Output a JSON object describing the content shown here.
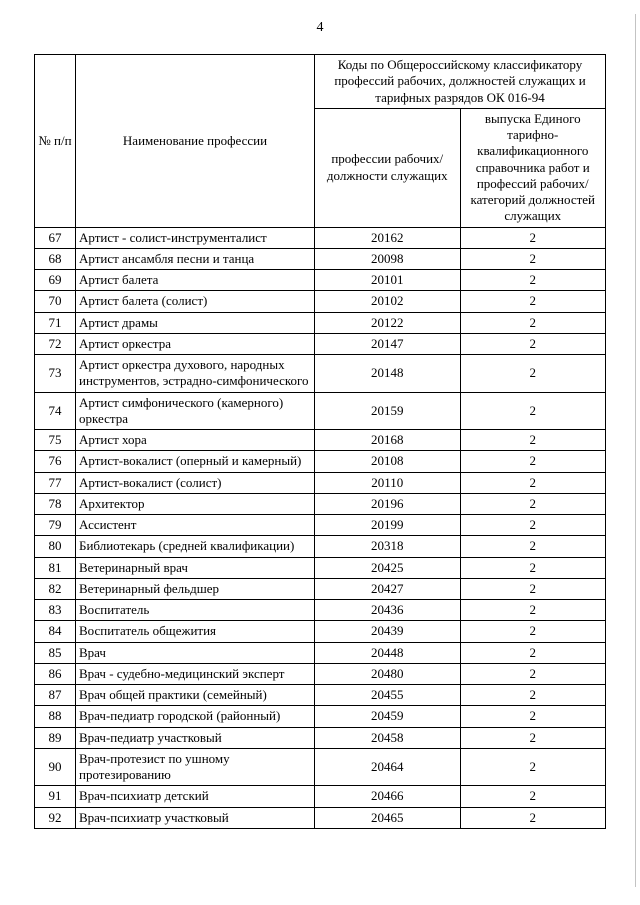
{
  "pageNumber": "4",
  "header": {
    "numLabel": "№ п/п",
    "nameLabel": "Наименование профессии",
    "codesGroup": "Коды по Общероссийскому классификатору профессий рабочих, должностей служащих и тарифных разрядов ОК 016-94",
    "codeCol": "профессии рабочих/ должности служащих",
    "catCol": "выпуска Единого тарифно-квалификационного справочника работ и профессий рабочих/категорий должностей служащих"
  },
  "rows": [
    {
      "n": "67",
      "name": "Артист - солист-инструменталист",
      "code": "20162",
      "cat": "2"
    },
    {
      "n": "68",
      "name": "Артист ансамбля песни и танца",
      "code": "20098",
      "cat": "2"
    },
    {
      "n": "69",
      "name": "Артист балета",
      "code": "20101",
      "cat": "2"
    },
    {
      "n": "70",
      "name": "Артист балета (солист)",
      "code": "20102",
      "cat": "2"
    },
    {
      "n": "71",
      "name": "Артист драмы",
      "code": "20122",
      "cat": "2"
    },
    {
      "n": "72",
      "name": "Артист оркестра",
      "code": "20147",
      "cat": "2"
    },
    {
      "n": "73",
      "name": "Артист оркестра духового, народных инструментов, эстрадно-симфонического",
      "code": "20148",
      "cat": "2"
    },
    {
      "n": "74",
      "name": "Артист симфонического (камерного) оркестра",
      "code": "20159",
      "cat": "2"
    },
    {
      "n": "75",
      "name": "Артист хора",
      "code": "20168",
      "cat": "2"
    },
    {
      "n": "76",
      "name": "Артист-вокалист (оперный и камерный)",
      "code": "20108",
      "cat": "2"
    },
    {
      "n": "77",
      "name": "Артист-вокалист (солист)",
      "code": "20110",
      "cat": "2"
    },
    {
      "n": "78",
      "name": "Архитектор",
      "code": "20196",
      "cat": "2"
    },
    {
      "n": "79",
      "name": "Ассистент",
      "code": "20199",
      "cat": "2"
    },
    {
      "n": "80",
      "name": "Библиотекарь (средней квалификации)",
      "code": "20318",
      "cat": "2"
    },
    {
      "n": "81",
      "name": "Ветеринарный врач",
      "code": "20425",
      "cat": "2"
    },
    {
      "n": "82",
      "name": "Ветеринарный фельдшер",
      "code": "20427",
      "cat": "2"
    },
    {
      "n": "83",
      "name": "Воспитатель",
      "code": "20436",
      "cat": "2"
    },
    {
      "n": "84",
      "name": "Воспитатель общежития",
      "code": "20439",
      "cat": "2"
    },
    {
      "n": "85",
      "name": "Врач",
      "code": "20448",
      "cat": "2"
    },
    {
      "n": "86",
      "name": "Врач - судебно-медицинский эксперт",
      "code": "20480",
      "cat": "2"
    },
    {
      "n": "87",
      "name": "Врач общей практики (семейный)",
      "code": "20455",
      "cat": "2"
    },
    {
      "n": "88",
      "name": "Врач-педиатр городской (районный)",
      "code": "20459",
      "cat": "2"
    },
    {
      "n": "89",
      "name": "Врач-педиатр участковый",
      "code": "20458",
      "cat": "2"
    },
    {
      "n": "90",
      "name": "Врач-протезист по ушному протезированию",
      "code": "20464",
      "cat": "2"
    },
    {
      "n": "91",
      "name": "Врач-психиатр детский",
      "code": "20466",
      "cat": "2"
    },
    {
      "n": "92",
      "name": "Врач-психиатр участковый",
      "code": "20465",
      "cat": "2"
    }
  ]
}
